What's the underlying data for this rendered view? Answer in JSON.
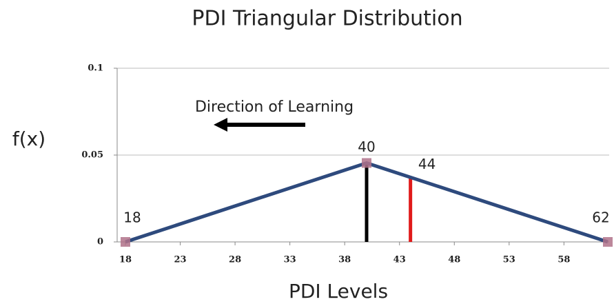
{
  "chart_data": {
    "type": "line",
    "title": "PDI Triangular Distribution",
    "x_label": "PDI Levels",
    "y_label": "f(x)",
    "annotation": "Direction of Learning",
    "x": [
      18,
      40,
      62
    ],
    "values": [
      0,
      0.04545,
      0
    ],
    "color": "#2e4a7d",
    "marker_color": "#b0728a",
    "xlim": [
      18,
      62
    ],
    "xticks": [
      18,
      23,
      28,
      33,
      38,
      43,
      48,
      53,
      58
    ],
    "ylim": [
      0,
      0.1
    ],
    "yticks": [
      0,
      0.05,
      0.1
    ],
    "grid": true,
    "vlines": [
      {
        "x": 40,
        "y": 0.04545,
        "color": "#000000"
      },
      {
        "x": 44,
        "y": 0.0372,
        "color": "#e01b1b"
      }
    ]
  }
}
